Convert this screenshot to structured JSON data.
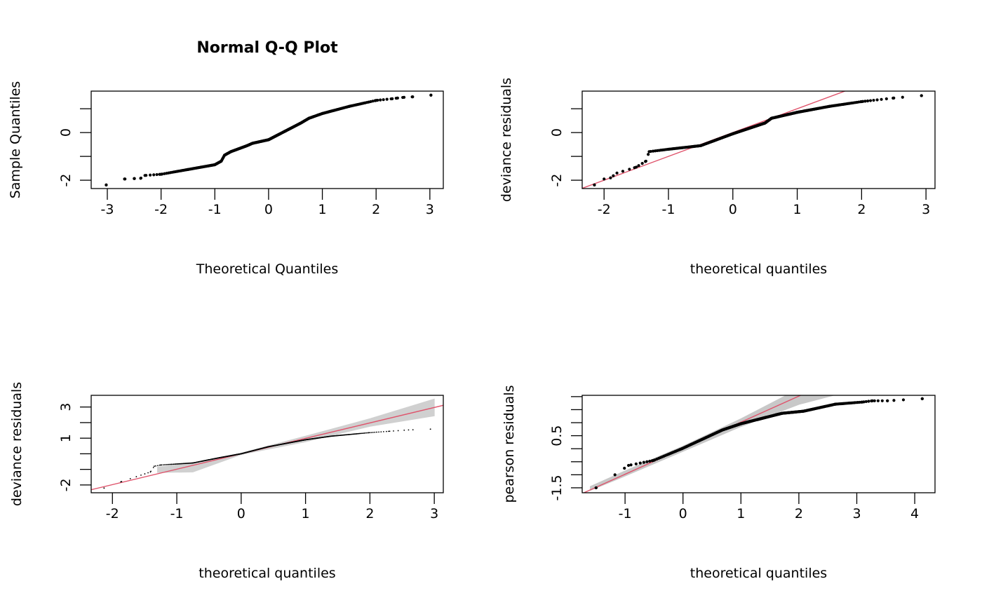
{
  "chart_data": [
    {
      "type": "scatter",
      "title": "Normal Q-Q Plot",
      "xlabel": "Theoretical Quantiles",
      "ylabel": "Sample Quantiles",
      "xlim": [
        -3.3,
        3.25
      ],
      "ylim": [
        -2.35,
        1.74
      ],
      "xticks": [
        -3,
        -2,
        -1,
        0,
        1,
        2,
        3
      ],
      "xtick_labels": [
        "-3",
        "-2",
        "-1",
        "0",
        "1",
        "2",
        "3"
      ],
      "yticks": [
        -2,
        -1,
        0,
        1
      ],
      "ytick_labels": [
        "-2",
        "",
        "0",
        ""
      ],
      "n_points": 400,
      "point_size": "medium",
      "points": [
        [
          -3.02,
          -2.2
        ],
        [
          -2.68,
          -1.95
        ],
        [
          -2.5,
          -1.93
        ],
        [
          -2.38,
          -1.92
        ],
        [
          -2.3,
          -1.8
        ],
        [
          -2.0,
          -1.75
        ],
        [
          -1.5,
          -1.55
        ],
        [
          -1.0,
          -1.35
        ],
        [
          -0.88,
          -1.2
        ],
        [
          -0.82,
          -0.95
        ],
        [
          -0.7,
          -0.8
        ],
        [
          -0.4,
          -0.55
        ],
        [
          -0.3,
          -0.45
        ],
        [
          0,
          -0.3
        ],
        [
          0.3,
          0.05
        ],
        [
          0.6,
          0.4
        ],
        [
          0.75,
          0.6
        ],
        [
          1.0,
          0.8
        ],
        [
          1.5,
          1.1
        ],
        [
          2.0,
          1.35
        ],
        [
          2.3,
          1.42
        ],
        [
          2.4,
          1.45
        ],
        [
          2.52,
          1.48
        ],
        [
          2.68,
          1.5
        ],
        [
          3.02,
          1.57
        ]
      ],
      "reference_line": null,
      "envelope": null
    },
    {
      "type": "scatter",
      "title": "",
      "xlabel": "theoretical quantiles",
      "ylabel": "deviance residuals",
      "xlim": [
        -2.34,
        3.14
      ],
      "ylim": [
        -2.35,
        1.74
      ],
      "xticks": [
        -2,
        -1,
        0,
        1,
        2,
        3
      ],
      "xtick_labels": [
        "-2",
        "-1",
        "0",
        "1",
        "2",
        "3"
      ],
      "yticks": [
        -2,
        -1,
        0,
        1
      ],
      "ytick_labels": [
        "-2",
        "",
        "0",
        ""
      ],
      "n_points": 400,
      "point_size": "medium",
      "points": [
        [
          -2.15,
          -2.2
        ],
        [
          -2.0,
          -1.95
        ],
        [
          -1.9,
          -1.9
        ],
        [
          -1.8,
          -1.7
        ],
        [
          -1.5,
          -1.45
        ],
        [
          -1.35,
          -1.2
        ],
        [
          -1.3,
          -0.8
        ],
        [
          -1.0,
          -0.7
        ],
        [
          -0.5,
          -0.55
        ],
        [
          0,
          -0.05
        ],
        [
          0.5,
          0.4
        ],
        [
          0.6,
          0.6
        ],
        [
          1.0,
          0.85
        ],
        [
          1.5,
          1.1
        ],
        [
          2.0,
          1.3
        ],
        [
          2.5,
          1.45
        ],
        [
          2.93,
          1.55
        ]
      ],
      "reference_line": {
        "intercept": 0.0,
        "slope": 1.0,
        "color": "#DF536B"
      },
      "envelope": null
    },
    {
      "type": "scatter",
      "title": "",
      "xlabel": "theoretical quantiles",
      "ylabel": "deviance residuals",
      "xlim": [
        -2.33,
        3.14
      ],
      "ylim": [
        -2.5,
        3.75
      ],
      "xticks": [
        -2,
        -1,
        0,
        1,
        2,
        3
      ],
      "xtick_labels": [
        "-2",
        "-1",
        "0",
        "1",
        "2",
        "3"
      ],
      "yticks": [
        -2,
        -1,
        0,
        1,
        2,
        3
      ],
      "ytick_labels": [
        "-2",
        "",
        "",
        "1",
        "",
        "3"
      ],
      "n_points": 600,
      "point_size": "tiny",
      "points": [
        [
          -2.13,
          -2.2
        ],
        [
          -1.87,
          -1.8
        ],
        [
          -1.41,
          -1.17
        ],
        [
          -1.35,
          -0.8
        ],
        [
          -1.25,
          -0.72
        ],
        [
          -0.75,
          -0.59
        ],
        [
          -0.36,
          -0.27
        ],
        [
          0,
          0
        ],
        [
          0.42,
          0.45
        ],
        [
          1.0,
          0.9
        ],
        [
          1.4,
          1.13
        ],
        [
          1.98,
          1.35
        ],
        [
          2.29,
          1.44
        ],
        [
          2.6,
          1.53
        ],
        [
          2.94,
          1.58
        ]
      ],
      "reference_line": {
        "intercept": 0.0,
        "slope": 0.99,
        "color": "#DF536B"
      },
      "envelope": {
        "color": "#D0D0D0",
        "x": [
          -1.3,
          -0.75,
          0,
          1,
          2,
          3
        ],
        "lower": [
          -1.2,
          -1.17,
          -0.05,
          0.77,
          1.76,
          2.43
        ],
        "upper": [
          -0.85,
          -0.6,
          0.05,
          1.13,
          2.25,
          3.51
        ]
      }
    },
    {
      "type": "scatter",
      "title": "",
      "xlabel": "theoretical quantiles",
      "ylabel": "pearson residuals",
      "xlim": [
        -1.74,
        4.35
      ],
      "ylim": [
        -1.69,
        2.05
      ],
      "xticks": [
        -1,
        0,
        1,
        2,
        3,
        4
      ],
      "xtick_labels": [
        "-1",
        "0",
        "1",
        "2",
        "3",
        "4"
      ],
      "yticks": [
        -1.5,
        -1,
        -0.5,
        0,
        0.5,
        1,
        1.5,
        2
      ],
      "ytick_labels": [
        "-1.5",
        "",
        "",
        "",
        "0.5",
        "",
        "",
        ""
      ],
      "n_points": 400,
      "point_size": "medium",
      "points": [
        [
          -1.5,
          -1.5
        ],
        [
          -0.94,
          -0.64
        ],
        [
          -0.51,
          -0.45
        ],
        [
          -0.02,
          0
        ],
        [
          0.68,
          0.72
        ],
        [
          1.0,
          0.96
        ],
        [
          1.71,
          1.36
        ],
        [
          2.08,
          1.44
        ],
        [
          2.63,
          1.71
        ],
        [
          3.09,
          1.79
        ],
        [
          3.27,
          1.84
        ],
        [
          3.53,
          1.84
        ],
        [
          4.13,
          1.92
        ]
      ],
      "reference_line": {
        "intercept": 0.02,
        "slope": 1.0,
        "color": "#DF536B"
      },
      "envelope": {
        "color": "#C8C8C8",
        "x": [
          -1.6,
          -1,
          0,
          1,
          2,
          2.6
        ],
        "lower": [
          -1.6,
          -1.05,
          -0.1,
          0.85,
          1.7,
          2.05
        ],
        "upper": [
          -1.45,
          -0.85,
          0.1,
          1.15,
          2.3,
          2.6
        ]
      }
    }
  ]
}
